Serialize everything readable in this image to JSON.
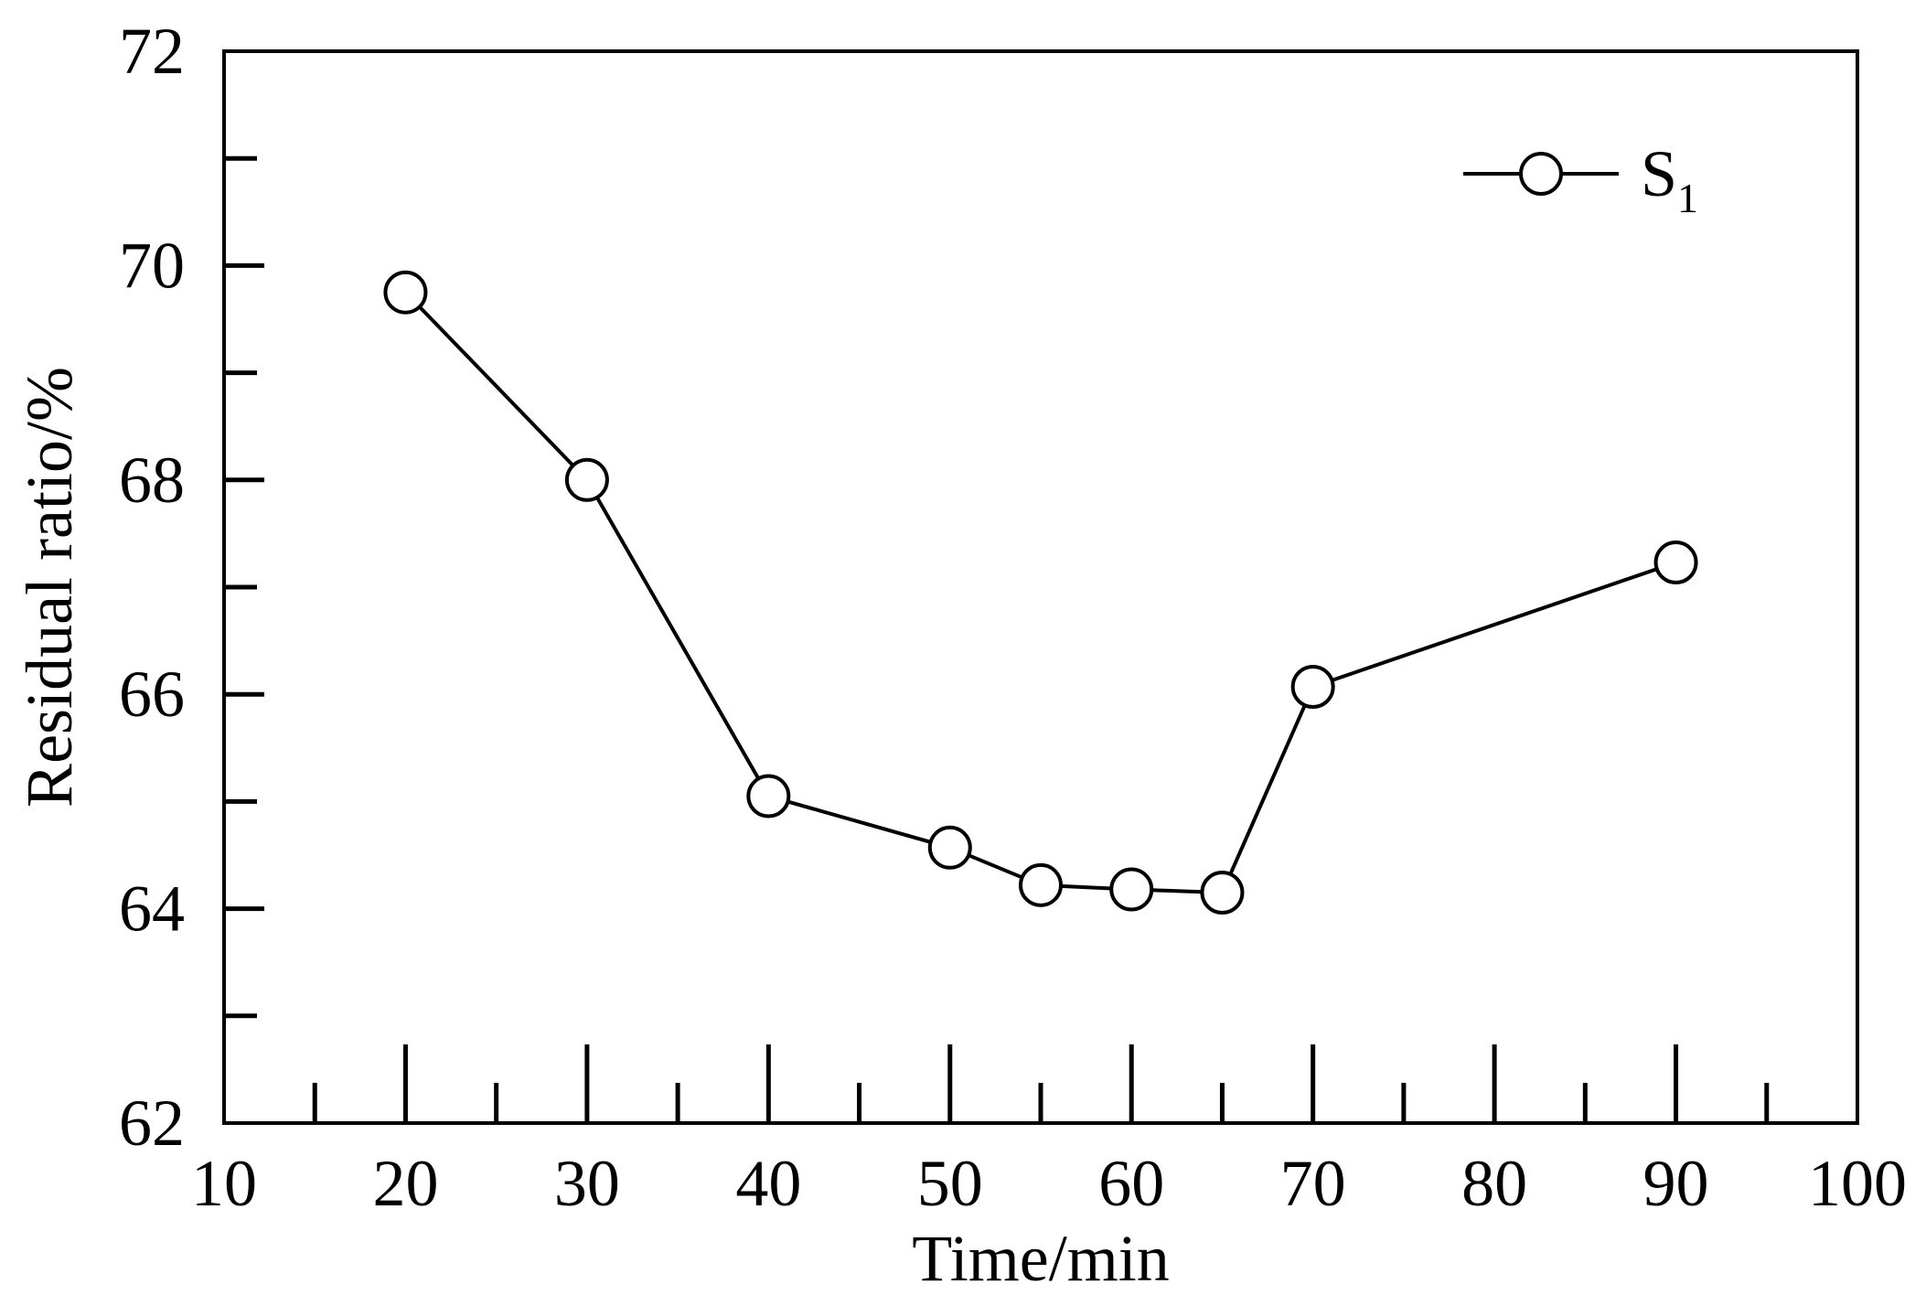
{
  "chart_data": {
    "type": "line",
    "xlabel": "Time/min",
    "ylabel": "Residual ratio/%",
    "xlim": [
      10,
      100
    ],
    "ylim": [
      62,
      72
    ],
    "x_ticks": [
      "10",
      "20",
      "30",
      "40",
      "50",
      "60",
      "70",
      "80",
      "90",
      "100"
    ],
    "y_ticks": [
      "62",
      "64",
      "66",
      "68",
      "70",
      "72"
    ],
    "grid": false,
    "legend_position": "top-right",
    "series": [
      {
        "name": "S",
        "name_subscript": "1",
        "marker": "open-circle",
        "color": "#000000",
        "x": [
          20,
          30,
          40,
          50,
          55,
          60,
          65,
          70,
          90
        ],
        "y": [
          69.75,
          68.0,
          65.05,
          64.57,
          64.22,
          64.18,
          64.15,
          66.07,
          67.23
        ]
      }
    ]
  }
}
